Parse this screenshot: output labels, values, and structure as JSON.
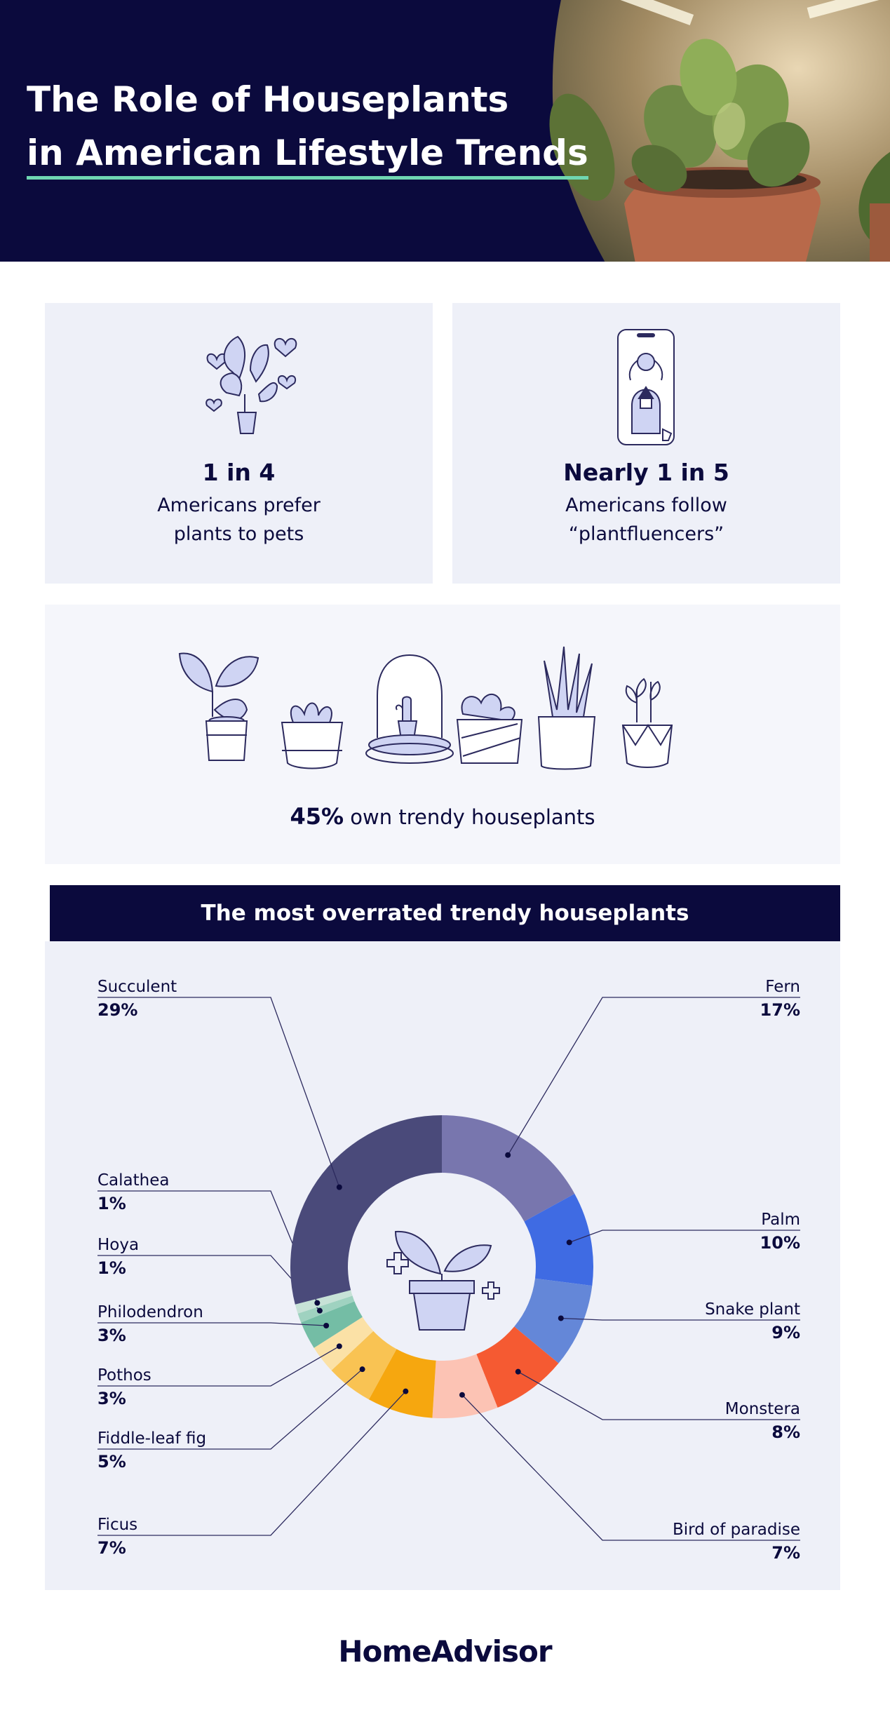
{
  "header": {
    "title_line1": "The Role of Houseplants",
    "title_line2": "in American Lifestyle Trends"
  },
  "stats": [
    {
      "big": "1 in 4",
      "line1": "Americans prefer",
      "line2": "plants to pets",
      "icon": "plant-hearts-icon"
    },
    {
      "big": "Nearly 1 in 5",
      "line1": "Americans follow",
      "line2": "“plantfluencers”",
      "icon": "phone-plantfluencer-icon"
    }
  ],
  "trendy": {
    "percent": "45%",
    "text": " own trendy houseplants"
  },
  "chart_data": {
    "type": "pie",
    "title": "The most overrated trendy houseplants",
    "slices": [
      {
        "label": "Fern",
        "value": 17,
        "display": "17%",
        "color": "#7876ae"
      },
      {
        "label": "Palm",
        "value": 10,
        "display": "10%",
        "color": "#3f6be3"
      },
      {
        "label": "Snake plant",
        "value": 9,
        "display": "9%",
        "color": "#6487d8"
      },
      {
        "label": "Monstera",
        "value": 8,
        "display": "8%",
        "color": "#f55a32"
      },
      {
        "label": "Bird of paradise",
        "value": 7,
        "display": "7%",
        "color": "#fcc3b4"
      },
      {
        "label": "Ficus",
        "value": 7,
        "display": "7%",
        "color": "#f6a70f"
      },
      {
        "label": "Fiddle-leaf fig",
        "value": 5,
        "display": "5%",
        "color": "#f9c353"
      },
      {
        "label": "Pothos",
        "value": 3,
        "display": "3%",
        "color": "#fbe1a6"
      },
      {
        "label": "Philodendron",
        "value": 3,
        "display": "3%",
        "color": "#74bda5"
      },
      {
        "label": "Hoya",
        "value": 1,
        "display": "1%",
        "color": "#9fd2c0"
      },
      {
        "label": "Calathea",
        "value": 1,
        "display": "1%",
        "color": "#c7e2d7"
      },
      {
        "label": "Succulent",
        "value": 29,
        "display": "29%",
        "color": "#4a4a7a"
      }
    ]
  },
  "footer": {
    "brand": "HomeAdvisor"
  }
}
